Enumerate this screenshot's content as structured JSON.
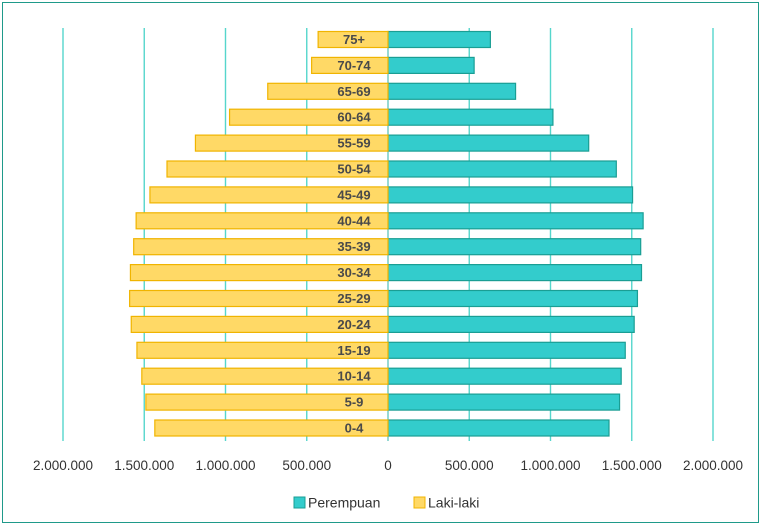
{
  "chart_data": {
    "type": "bar",
    "orientation": "horizontal",
    "subtype": "population-pyramid",
    "title": "",
    "xlabel": "",
    "ylabel": "",
    "categories": [
      "0-4",
      "5-9",
      "10-14",
      "15-19",
      "20-24",
      "25-29",
      "30-34",
      "35-39",
      "40-44",
      "45-49",
      "50-54",
      "55-59",
      "60-64",
      "65-69",
      "70-74",
      "75+"
    ],
    "series": [
      {
        "name": "Perempuan",
        "color": "#33cccc",
        "stroke": "#1a9e94",
        "side": "right",
        "values": [
          1360000,
          1425000,
          1435000,
          1460000,
          1515000,
          1535000,
          1560000,
          1555000,
          1570000,
          1505000,
          1405000,
          1235000,
          1015000,
          785000,
          530000,
          630000
        ]
      },
      {
        "name": "Laki-laki",
        "color": "#ffd966",
        "stroke": "#f0b400",
        "side": "left",
        "values": [
          1435000,
          1490000,
          1515000,
          1545000,
          1580000,
          1590000,
          1585000,
          1565000,
          1550000,
          1465000,
          1360000,
          1185000,
          975000,
          740000,
          470000,
          430000
        ]
      }
    ],
    "xlim": [
      -2000000,
      2000000
    ],
    "xticks": [
      -2000000,
      -1500000,
      -1000000,
      -500000,
      0,
      500000,
      1000000,
      1500000,
      2000000
    ],
    "xtick_labels": [
      "2.000.000",
      "1.500.000",
      "1.000.000",
      "500.000",
      "0",
      "500.000",
      "1.000.000",
      "1.500.000",
      "2.000.000"
    ],
    "category_labels": [
      "0-4",
      "5-9",
      "10-14",
      "15-19",
      "20-24",
      "25-29",
      "30-34",
      "35-39",
      "40-44",
      "45-49",
      "50-54",
      "55-59",
      "60-64",
      "65-69",
      "70-74",
      "75+"
    ],
    "grid": true,
    "gridline_color": "#55d6cc",
    "legend": {
      "position": "bottom",
      "entries": [
        "Perempuan",
        "Laki-laki"
      ]
    }
  }
}
